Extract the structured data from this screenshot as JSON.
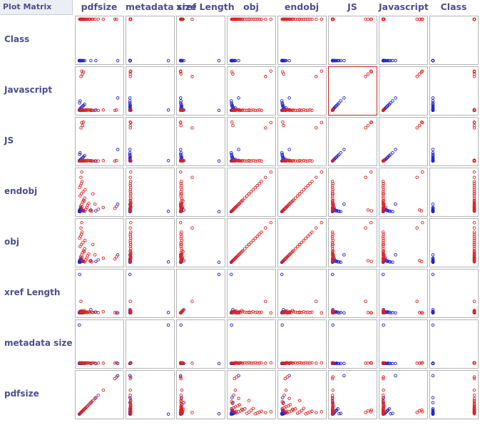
{
  "window": {
    "title": "Plot Matrix"
  },
  "colors": {
    "class_0": "#2222cc",
    "class_1": "#dd2222",
    "selected_border": "#cc2222",
    "frame": "#b4b4b4",
    "header_text": "#4d4f8c"
  },
  "columns": [
    "pdfsize",
    "metadata size",
    "xref Length",
    "obj",
    "endobj",
    "JS",
    "Javascript",
    "Class"
  ],
  "rows": [
    "Class",
    "Javascript",
    "JS",
    "endobj",
    "obj",
    "xref Length",
    "metadata size",
    "pdfsize"
  ],
  "selected_cell": {
    "row": "Javascript",
    "column": "JS"
  },
  "chart_data": {
    "type": "scatter",
    "title": "",
    "attributes": [
      "pdfsize",
      "metadata size",
      "xref Length",
      "obj",
      "endobj",
      "JS",
      "Javascript",
      "Class"
    ],
    "ranges": {
      "pdfsize": [
        0,
        100
      ],
      "metadata size": [
        0,
        100
      ],
      "xref Length": [
        0,
        100
      ],
      "obj": [
        0,
        100
      ],
      "endobj": [
        0,
        100
      ],
      "JS": [
        0,
        100
      ],
      "Javascript": [
        0,
        100
      ],
      "Class": [
        0,
        1
      ]
    },
    "series": [
      {
        "name": "",
        "class_value": 0,
        "color": "#2222cc",
        "points": [
          {
            "pdfsize": 2,
            "metadata size": 2,
            "xref Length": 3,
            "obj": 4,
            "endobj": 4,
            "JS": 2,
            "Javascript": 3,
            "Class": 0
          },
          {
            "pdfsize": 3,
            "metadata size": 2,
            "xref Length": 5,
            "obj": 6,
            "endobj": 6,
            "JS": 3,
            "Javascript": 4,
            "Class": 0
          },
          {
            "pdfsize": 4,
            "metadata size": 3,
            "xref Length": 4,
            "obj": 8,
            "endobj": 8,
            "JS": 5,
            "Javascript": 6,
            "Class": 0
          },
          {
            "pdfsize": 5,
            "metadata size": 2,
            "xref Length": 6,
            "obj": 10,
            "endobj": 10,
            "JS": 4,
            "Javascript": 5,
            "Class": 0
          },
          {
            "pdfsize": 6,
            "metadata size": 3,
            "xref Length": 3,
            "obj": 12,
            "endobj": 12,
            "JS": 6,
            "Javascript": 8,
            "Class": 0
          },
          {
            "pdfsize": 8,
            "metadata size": 2,
            "xref Length": 4,
            "obj": 6,
            "endobj": 6,
            "JS": 8,
            "Javascript": 10,
            "Class": 0
          },
          {
            "pdfsize": 10,
            "metadata size": 2,
            "xref Length": 5,
            "obj": 4,
            "endobj": 4,
            "JS": 10,
            "Javascript": 12,
            "Class": 0
          },
          {
            "pdfsize": 12,
            "metadata size": 3,
            "xref Length": 3,
            "obj": 5,
            "endobj": 5,
            "JS": 12,
            "Javascript": 14,
            "Class": 0
          },
          {
            "pdfsize": 15,
            "metadata size": 2,
            "xref Length": 4,
            "obj": 3,
            "endobj": 3,
            "JS": 15,
            "Javascript": 17,
            "Class": 0
          },
          {
            "pdfsize": 3,
            "metadata size": 2,
            "xref Length": 2,
            "obj": 3,
            "endobj": 3,
            "JS": 18,
            "Javascript": 20,
            "Class": 0
          },
          {
            "pdfsize": 4,
            "metadata size": 2,
            "xref Length": 3,
            "obj": 2,
            "endobj": 2,
            "JS": 22,
            "Javascript": 25,
            "Class": 0
          },
          {
            "pdfsize": 2,
            "metadata size": 3,
            "xref Length": 2,
            "obj": 2,
            "endobj": 2,
            "JS": 2,
            "Javascript": 2,
            "Class": 0
          },
          {
            "pdfsize": 30,
            "metadata size": 2,
            "xref Length": 10,
            "obj": 6,
            "endobj": 6,
            "JS": 3,
            "Javascript": 3,
            "Class": 0
          },
          {
            "pdfsize": 42,
            "metadata size": 2,
            "xref Length": 4,
            "obj": 4,
            "endobj": 4,
            "JS": 2,
            "Javascript": 3,
            "Class": 0
          },
          {
            "pdfsize": 3,
            "metadata size": 2,
            "xref Length": 95,
            "obj": 2,
            "endobj": 2,
            "JS": 2,
            "Javascript": 2,
            "Class": 0
          },
          {
            "pdfsize": 2,
            "metadata size": 95,
            "xref Length": 3,
            "obj": 3,
            "endobj": 3,
            "JS": 3,
            "Javascript": 3,
            "Class": 0
          },
          {
            "pdfsize": 95,
            "metadata size": 2,
            "xref Length": 2,
            "obj": 20,
            "endobj": 20,
            "JS": 30,
            "Javascript": 32,
            "Class": 0
          },
          {
            "pdfsize": 4,
            "metadata size": 2,
            "xref Length": 3,
            "obj": 3,
            "endobj": 3,
            "JS": 2,
            "Javascript": 2,
            "Class": 0
          },
          {
            "pdfsize": 6,
            "metadata size": 2,
            "xref Length": 2,
            "obj": 4,
            "endobj": 4,
            "JS": 4,
            "Javascript": 4,
            "Class": 0
          }
        ]
      },
      {
        "name": "",
        "class_value": 1,
        "color": "#dd2222",
        "points": [
          {
            "pdfsize": 5,
            "metadata size": 3,
            "xref Length": 3,
            "obj": 15,
            "endobj": 15,
            "JS": 3,
            "Javascript": 3,
            "Class": 1
          },
          {
            "pdfsize": 8,
            "metadata size": 3,
            "xref Length": 4,
            "obj": 20,
            "endobj": 20,
            "JS": 4,
            "Javascript": 4,
            "Class": 1
          },
          {
            "pdfsize": 10,
            "metadata size": 4,
            "xref Length": 3,
            "obj": 25,
            "endobj": 25,
            "JS": 2,
            "Javascript": 2,
            "Class": 1
          },
          {
            "pdfsize": 12,
            "metadata size": 3,
            "xref Length": 5,
            "obj": 30,
            "endobj": 30,
            "JS": 3,
            "Javascript": 3,
            "Class": 1
          },
          {
            "pdfsize": 15,
            "metadata size": 4,
            "xref Length": 4,
            "obj": 35,
            "endobj": 35,
            "JS": 2,
            "Javascript": 2,
            "Class": 1
          },
          {
            "pdfsize": 18,
            "metadata size": 3,
            "xref Length": 3,
            "obj": 8,
            "endobj": 8,
            "JS": 3,
            "Javascript": 3,
            "Class": 1
          },
          {
            "pdfsize": 20,
            "metadata size": 4,
            "xref Length": 4,
            "obj": 12,
            "endobj": 12,
            "JS": 2,
            "Javascript": 2,
            "Class": 1
          },
          {
            "pdfsize": 22,
            "metadata size": 3,
            "xref Length": 3,
            "obj": 18,
            "endobj": 18,
            "JS": 4,
            "Javascript": 4,
            "Class": 1
          },
          {
            "pdfsize": 25,
            "metadata size": 4,
            "xref Length": 5,
            "obj": 22,
            "endobj": 22,
            "JS": 3,
            "Javascript": 3,
            "Class": 1
          },
          {
            "pdfsize": 6,
            "metadata size": 3,
            "xref Length": 6,
            "obj": 10,
            "endobj": 10,
            "JS": 2,
            "Javascript": 2,
            "Class": 1
          },
          {
            "pdfsize": 9,
            "metadata size": 4,
            "xref Length": 7,
            "obj": 14,
            "endobj": 14,
            "JS": 3,
            "Javascript": 3,
            "Class": 1
          },
          {
            "pdfsize": 14,
            "metadata size": 3,
            "xref Length": 8,
            "obj": 28,
            "endobj": 28,
            "JS": 2,
            "Javascript": 2,
            "Class": 1
          },
          {
            "pdfsize": 4,
            "metadata size": 3,
            "xref Length": 3,
            "obj": 40,
            "endobj": 40,
            "JS": 2,
            "Javascript": 2,
            "Class": 1
          },
          {
            "pdfsize": 7,
            "metadata size": 4,
            "xref Length": 4,
            "obj": 45,
            "endobj": 45,
            "JS": 3,
            "Javascript": 3,
            "Class": 1
          },
          {
            "pdfsize": 11,
            "metadata size": 3,
            "xref Length": 3,
            "obj": 50,
            "endobj": 50,
            "JS": 2,
            "Javascript": 2,
            "Class": 1
          },
          {
            "pdfsize": 16,
            "metadata size": 3,
            "xref Length": 5,
            "obj": 55,
            "endobj": 55,
            "JS": 3,
            "Javascript": 3,
            "Class": 1
          },
          {
            "pdfsize": 3,
            "metadata size": 4,
            "xref Length": 3,
            "obj": 60,
            "endobj": 60,
            "JS": 2,
            "Javascript": 2,
            "Class": 1
          },
          {
            "pdfsize": 5,
            "metadata size": 3,
            "xref Length": 4,
            "obj": 65,
            "endobj": 65,
            "JS": 2,
            "Javascript": 2,
            "Class": 1
          },
          {
            "pdfsize": 7,
            "metadata size": 3,
            "xref Length": 3,
            "obj": 70,
            "endobj": 70,
            "JS": 3,
            "Javascript": 3,
            "Class": 1
          },
          {
            "pdfsize": 9,
            "metadata size": 4,
            "xref Length": 4,
            "obj": 75,
            "endobj": 75,
            "JS": 2,
            "Javascript": 2,
            "Class": 1
          },
          {
            "pdfsize": 28,
            "metadata size": 3,
            "xref Length": 3,
            "obj": 5,
            "endobj": 5,
            "JS": 2,
            "Javascript": 2,
            "Class": 1
          },
          {
            "pdfsize": 32,
            "metadata size": 3,
            "xref Length": 4,
            "obj": 3,
            "endobj": 3,
            "JS": 2,
            "Javascript": 2,
            "Class": 1
          },
          {
            "pdfsize": 6,
            "metadata size": 3,
            "xref Length": 30,
            "obj": 85,
            "endobj": 85,
            "JS": 82,
            "Javascript": 84,
            "Class": 1
          },
          {
            "pdfsize": 8,
            "metadata size": 4,
            "xref Length": 2,
            "obj": 98,
            "endobj": 98,
            "JS": 95,
            "Javascript": 97,
            "Class": 1
          },
          {
            "pdfsize": 10,
            "metadata size": 3,
            "xref Length": 3,
            "obj": 6,
            "endobj": 6,
            "JS": 88,
            "Javascript": 90,
            "Class": 1
          },
          {
            "pdfsize": 12,
            "metadata size": 3,
            "xref Length": 2,
            "obj": 4,
            "endobj": 4,
            "JS": 96,
            "Javascript": 95,
            "Class": 1
          },
          {
            "pdfsize": 88,
            "metadata size": 3,
            "xref Length": 3,
            "obj": 10,
            "endobj": 10,
            "JS": 2,
            "Javascript": 2,
            "Class": 1
          },
          {
            "pdfsize": 92,
            "metadata size": 4,
            "xref Length": 2,
            "obj": 15,
            "endobj": 15,
            "JS": 3,
            "Javascript": 3,
            "Class": 1
          },
          {
            "pdfsize": 40,
            "metadata size": 3,
            "xref Length": 4,
            "obj": 20,
            "endobj": 20,
            "JS": 2,
            "Javascript": 2,
            "Class": 1
          },
          {
            "pdfsize": 48,
            "metadata size": 3,
            "xref Length": 3,
            "obj": 8,
            "endobj": 8,
            "JS": 2,
            "Javascript": 2,
            "Class": 1
          },
          {
            "pdfsize": 60,
            "metadata size": 3,
            "xref Length": 5,
            "obj": 12,
            "endobj": 12,
            "JS": 3,
            "Javascript": 3,
            "Class": 1
          },
          {
            "pdfsize": 35,
            "metadata size": 4,
            "xref Length": 3,
            "obj": 45,
            "endobj": 45,
            "JS": 2,
            "Javascript": 2,
            "Class": 1
          }
        ]
      }
    ]
  }
}
